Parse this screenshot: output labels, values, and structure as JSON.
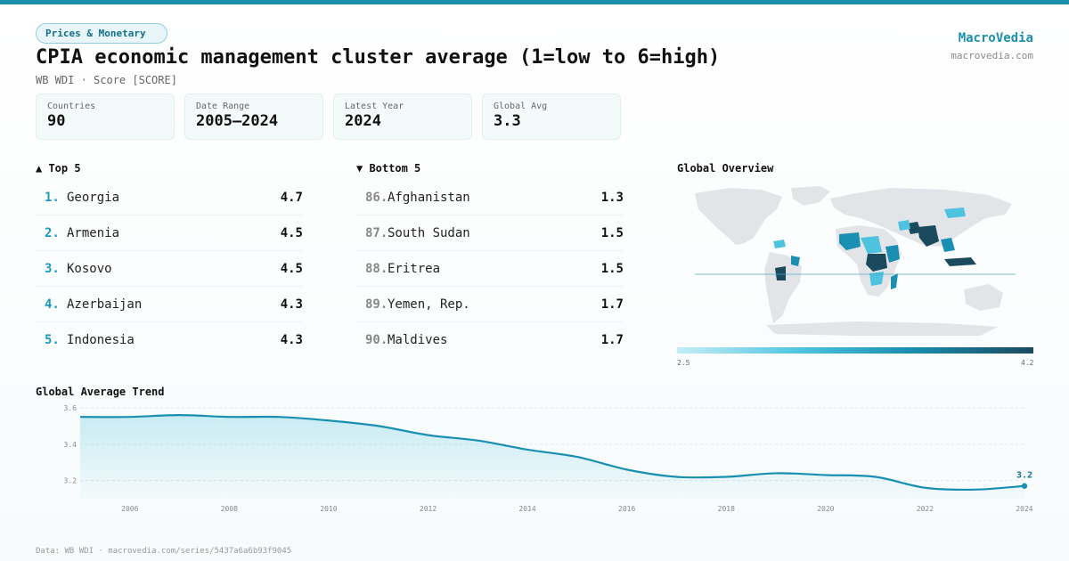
{
  "header": {
    "category": "Prices & Monetary",
    "title": "CPIA economic management cluster average (1=low to 6=high)",
    "subtitle": "WB WDI · Score [SCORE]"
  },
  "brand": {
    "name": "MacroVedia",
    "url": "macrovedia.com"
  },
  "stats": [
    {
      "label": "Countries",
      "value": "90"
    },
    {
      "label": "Date Range",
      "value": "2005–2024"
    },
    {
      "label": "Latest Year",
      "value": "2024"
    },
    {
      "label": "Global Avg",
      "value": "3.3"
    }
  ],
  "top5": {
    "title": "▲ Top 5",
    "items": [
      {
        "rank": "1.",
        "name": "Georgia",
        "value": "4.7"
      },
      {
        "rank": "2.",
        "name": "Armenia",
        "value": "4.5"
      },
      {
        "rank": "3.",
        "name": "Kosovo",
        "value": "4.5"
      },
      {
        "rank": "4.",
        "name": "Azerbaijan",
        "value": "4.3"
      },
      {
        "rank": "5.",
        "name": "Indonesia",
        "value": "4.3"
      }
    ]
  },
  "bottom5": {
    "title": "▼ Bottom 5",
    "items": [
      {
        "rank": "86.",
        "name": "Afghanistan",
        "value": "1.3"
      },
      {
        "rank": "87.",
        "name": "South Sudan",
        "value": "1.5"
      },
      {
        "rank": "88.",
        "name": "Eritrea",
        "value": "1.5"
      },
      {
        "rank": "89.",
        "name": "Yemen, Rep.",
        "value": "1.7"
      },
      {
        "rank": "90.",
        "name": "Maldives",
        "value": "1.7"
      }
    ]
  },
  "map": {
    "title": "Global Overview",
    "legend_min": "2.5",
    "legend_max": "4.2",
    "colors": {
      "land": "#e3e4e8",
      "low": "#c4eef8",
      "mid": "#4dc3df",
      "high": "#1a8fb2",
      "top": "#1b4a5e"
    }
  },
  "trend_title": "Global Average Trend",
  "chart_data": {
    "type": "area",
    "x": [
      2005,
      2006,
      2007,
      2008,
      2009,
      2010,
      2011,
      2012,
      2013,
      2014,
      2015,
      2016,
      2017,
      2018,
      2019,
      2020,
      2021,
      2022,
      2023,
      2024
    ],
    "series": [
      {
        "values": [
          3.55,
          3.55,
          3.56,
          3.55,
          3.55,
          3.53,
          3.5,
          3.45,
          3.42,
          3.37,
          3.33,
          3.26,
          3.22,
          3.22,
          3.24,
          3.23,
          3.22,
          3.16,
          3.15,
          3.17
        ]
      }
    ],
    "ylim": [
      3.1,
      3.6
    ],
    "yticks": [
      "3.2",
      "3.4",
      "3.6"
    ],
    "xticks": [
      "2006",
      "2008",
      "2010",
      "2012",
      "2014",
      "2016",
      "2018",
      "2020",
      "2022",
      "2024"
    ],
    "last_label": "3.2",
    "color": "#1a8fb2"
  },
  "footer": "Data: WB WDI · macrovedia.com/series/5437a6a6b93f9045"
}
